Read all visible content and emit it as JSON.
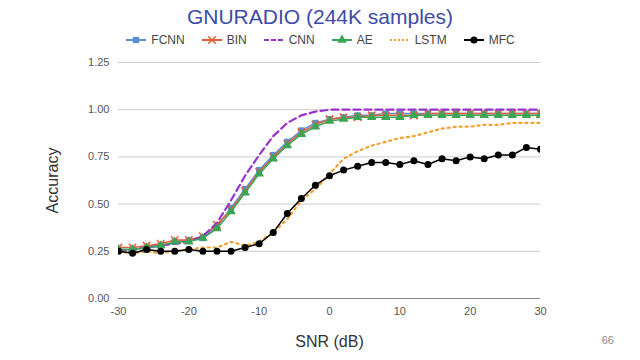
{
  "chart_data": {
    "type": "line",
    "title": "GNURADIO (244K samples)",
    "x_label": "SNR (dB)",
    "y_label": "Accuracy",
    "annotations": [
      "66"
    ],
    "x": [
      -30,
      -28,
      -26,
      -24,
      -22,
      -20,
      -18,
      -16,
      -14,
      -12,
      -10,
      -8,
      -6,
      -4,
      -2,
      0,
      2,
      4,
      6,
      8,
      10,
      12,
      14,
      16,
      18,
      20,
      22,
      24,
      26,
      28,
      30
    ],
    "xlim": [
      -30,
      30
    ],
    "xticks": [
      -30,
      -20,
      -10,
      0,
      10,
      20,
      30
    ],
    "ylim": [
      0,
      1.25
    ],
    "yticks": [
      {
        "value": 0,
        "label": "0.00"
      },
      {
        "value": 0.25,
        "label": "0.25"
      },
      {
        "value": 0.5,
        "label": "0.50"
      },
      {
        "value": 0.75,
        "label": "0.75"
      },
      {
        "value": 1,
        "label": "1.00"
      },
      {
        "value": 1.25,
        "label": "1.25"
      }
    ],
    "grid": true,
    "legend": "top",
    "series": [
      {
        "name": "FCNN",
        "color": "#5b8fd4",
        "marker": "square",
        "line_style": "solid",
        "values": [
          0.26,
          0.26,
          0.27,
          0.28,
          0.3,
          0.31,
          0.32,
          0.38,
          0.48,
          0.58,
          0.68,
          0.76,
          0.83,
          0.89,
          0.93,
          0.95,
          0.96,
          0.97,
          0.97,
          0.98,
          0.98,
          0.98,
          0.98,
          0.98,
          0.98,
          0.98,
          0.98,
          0.98,
          0.98,
          0.98,
          0.98
        ]
      },
      {
        "name": "BIN",
        "color": "#e0603a",
        "marker": "cross",
        "line_style": "solid",
        "values": [
          0.27,
          0.27,
          0.28,
          0.29,
          0.31,
          0.31,
          0.33,
          0.39,
          0.47,
          0.57,
          0.67,
          0.75,
          0.82,
          0.88,
          0.92,
          0.95,
          0.96,
          0.96,
          0.97,
          0.97,
          0.97,
          0.97,
          0.98,
          0.98,
          0.98,
          0.98,
          0.98,
          0.98,
          0.98,
          0.98,
          0.98
        ]
      },
      {
        "name": "CNN",
        "color": "#9933cc",
        "marker": "none",
        "line_style": "dashed",
        "values": [
          0.25,
          0.26,
          0.27,
          0.28,
          0.29,
          0.3,
          0.33,
          0.4,
          0.52,
          0.65,
          0.76,
          0.86,
          0.93,
          0.97,
          0.99,
          1.0,
          1.0,
          1.0,
          1.0,
          1.0,
          1.0,
          1.0,
          1.0,
          1.0,
          1.0,
          1.0,
          1.0,
          1.0,
          1.0,
          1.0,
          1.0
        ]
      },
      {
        "name": "AE",
        "color": "#3aa655",
        "marker": "triangle",
        "line_style": "solid",
        "values": [
          0.26,
          0.26,
          0.27,
          0.28,
          0.3,
          0.3,
          0.32,
          0.37,
          0.46,
          0.56,
          0.66,
          0.74,
          0.81,
          0.87,
          0.91,
          0.94,
          0.95,
          0.96,
          0.96,
          0.96,
          0.96,
          0.97,
          0.97,
          0.97,
          0.97,
          0.97,
          0.97,
          0.97,
          0.97,
          0.97,
          0.97
        ]
      },
      {
        "name": "LSTM",
        "color": "#f0a030",
        "marker": "none",
        "line_style": "dotted",
        "values": [
          0.25,
          0.24,
          0.25,
          0.24,
          0.25,
          0.26,
          0.27,
          0.27,
          0.3,
          0.28,
          0.3,
          0.35,
          0.42,
          0.52,
          0.58,
          0.66,
          0.74,
          0.78,
          0.81,
          0.83,
          0.85,
          0.86,
          0.88,
          0.9,
          0.91,
          0.91,
          0.92,
          0.92,
          0.93,
          0.93,
          0.93
        ]
      },
      {
        "name": "MFC",
        "color": "#000000",
        "marker": "circle",
        "line_style": "solid",
        "values": [
          0.25,
          0.24,
          0.26,
          0.25,
          0.25,
          0.26,
          0.25,
          0.25,
          0.25,
          0.27,
          0.29,
          0.35,
          0.45,
          0.53,
          0.6,
          0.65,
          0.68,
          0.7,
          0.72,
          0.72,
          0.71,
          0.73,
          0.71,
          0.74,
          0.73,
          0.75,
          0.74,
          0.76,
          0.76,
          0.8,
          0.79
        ]
      }
    ]
  }
}
